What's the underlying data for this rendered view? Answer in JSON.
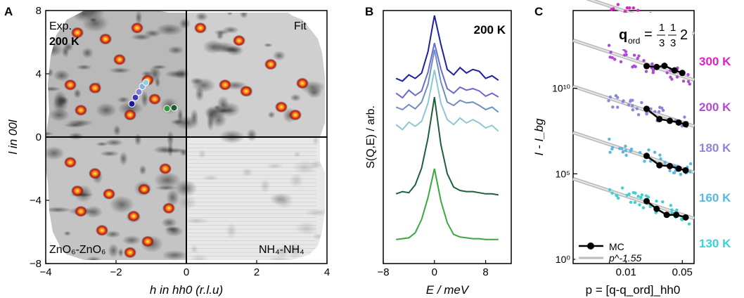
{
  "panels": {
    "a": {
      "letter": "A",
      "exp_label": "Exp.",
      "temp_label": "200 K",
      "fit_label": "Fit",
      "bottom_left_label": "ZnO₆-ZnO₆",
      "bottom_right_label": "NH₄-NH₄",
      "xlabel": "h in hh0 (r.l.u)",
      "ylabel": "l in 00l"
    },
    "b": {
      "letter": "B",
      "temp_label": "200 K",
      "xlabel": "E / meV",
      "ylabel": "S(Q,E) / arb."
    },
    "c": {
      "letter": "C",
      "q_label": "q",
      "q_sub": "ord",
      "q_value": "= 1/3 1/3 2",
      "xlabel": "p = [q-q_ord]_hh0",
      "ylabel": "I - I_bg",
      "legend": {
        "mc": "MC",
        "power": "p^-1.55"
      }
    }
  },
  "chart_data": [
    {
      "panel": "A",
      "type": "heatmap",
      "xlim": [
        -4,
        4
      ],
      "ylim": [
        -8,
        8
      ],
      "x_ticks": [
        "−4",
        "−2",
        "0",
        "2",
        "4"
      ],
      "y_ticks": [
        "8",
        "4",
        "0",
        "−4",
        "−8"
      ],
      "x_tick_values": [
        -4,
        -2,
        0,
        2,
        4
      ],
      "y_tick_values": [
        8,
        4,
        0,
        -4,
        -8
      ],
      "peaks": [
        {
          "h": -3.1,
          "l": 6.6
        },
        {
          "h": -2.3,
          "l": 6.2
        },
        {
          "h": -1.4,
          "l": 6.9
        },
        {
          "h": -1.9,
          "l": 4.9
        },
        {
          "h": -3.3,
          "l": 3.3
        },
        {
          "h": -2.6,
          "l": 3.1
        },
        {
          "h": -1.1,
          "l": 3.6
        },
        {
          "h": -0.9,
          "l": 2.4
        },
        {
          "h": -3.0,
          "l": 1.7
        },
        {
          "h": -1.6,
          "l": 1.4
        },
        {
          "h": 0.4,
          "l": 6.9
        },
        {
          "h": 1.5,
          "l": 6.1
        },
        {
          "h": 2.4,
          "l": 4.6
        },
        {
          "h": 3.3,
          "l": 3.4
        },
        {
          "h": 2.7,
          "l": 1.9
        },
        {
          "h": 1.1,
          "l": 3.3
        },
        {
          "h": 1.7,
          "l": 2.9
        },
        {
          "h": 3.1,
          "l": 1.4
        },
        {
          "h": -3.3,
          "l": -1.6
        },
        {
          "h": -2.6,
          "l": -2.3
        },
        {
          "h": -3.1,
          "l": -3.4
        },
        {
          "h": -2.2,
          "l": -3.6
        },
        {
          "h": -1.2,
          "l": -3.3
        },
        {
          "h": -3.0,
          "l": -4.7
        },
        {
          "h": -2.4,
          "l": -5.9
        },
        {
          "h": -1.5,
          "l": -5.0
        },
        {
          "h": -1.1,
          "l": -6.6
        },
        {
          "h": -1.6,
          "l": -7.3
        },
        {
          "h": -0.6,
          "l": -2.0
        },
        {
          "h": -0.5,
          "l": -4.5
        }
      ],
      "markers": [
        {
          "h": -1.55,
          "l": 2.1,
          "color": "#1a1a99"
        },
        {
          "h": -1.45,
          "l": 2.5,
          "color": "#3a3ab8"
        },
        {
          "h": -1.35,
          "l": 2.85,
          "color": "#7f7fd6"
        },
        {
          "h": -1.25,
          "l": 3.2,
          "color": "#8ab0d8"
        },
        {
          "h": -1.15,
          "l": 3.45,
          "color": "#8fd2df"
        },
        {
          "h": -0.55,
          "l": 1.8,
          "color": "#2f9a3a"
        },
        {
          "h": -0.35,
          "l": 1.85,
          "color": "#1d5b33"
        }
      ]
    },
    {
      "panel": "B",
      "type": "line",
      "xlim": [
        -8,
        12
      ],
      "x_ticks": [
        "−8",
        "0",
        "8"
      ],
      "x_tick_values": [
        -8,
        0,
        8
      ],
      "x": [
        -6,
        -5,
        -4,
        -3,
        -2,
        -1,
        0,
        1,
        2,
        3,
        4,
        5,
        6,
        7,
        8,
        9,
        10
      ],
      "series": [
        {
          "color": "#1f1fa3",
          "values": [
            0.3,
            0.27,
            0.34,
            0.3,
            0.36,
            0.6,
            1.0,
            0.68,
            0.4,
            0.34,
            0.42,
            0.36,
            0.4,
            0.38,
            0.3,
            0.33,
            0.28
          ]
        },
        {
          "color": "#6b6bcf",
          "values": [
            0.3,
            0.24,
            0.34,
            0.27,
            0.33,
            0.58,
            0.96,
            0.62,
            0.36,
            0.3,
            0.38,
            0.34,
            0.36,
            0.33,
            0.26,
            0.3,
            0.25
          ]
        },
        {
          "color": "#6e8fbf",
          "values": [
            0.28,
            0.25,
            0.31,
            0.26,
            0.34,
            0.55,
            0.96,
            0.58,
            0.34,
            0.3,
            0.36,
            0.33,
            0.34,
            0.3,
            0.25,
            0.28,
            0.22
          ]
        },
        {
          "color": "#8ec6d6",
          "values": [
            0.26,
            0.2,
            0.29,
            0.24,
            0.3,
            0.52,
            0.92,
            0.52,
            0.32,
            0.26,
            0.34,
            0.28,
            0.32,
            0.28,
            0.22,
            0.25,
            0.18
          ]
        },
        {
          "color": "#1f5e3a",
          "values": [
            0.12,
            0.14,
            0.13,
            0.2,
            0.35,
            0.62,
            0.98,
            0.56,
            0.3,
            0.18,
            0.15,
            0.14,
            0.14,
            0.13,
            0.12,
            0.12,
            0.11
          ]
        },
        {
          "color": "#3aa83f",
          "values": [
            0.06,
            0.07,
            0.08,
            0.14,
            0.3,
            0.56,
            0.9,
            0.52,
            0.26,
            0.12,
            0.09,
            0.08,
            0.07,
            0.07,
            0.06,
            0.06,
            0.06
          ]
        }
      ]
    },
    {
      "panel": "C",
      "type": "scatter",
      "x_scale": "log",
      "y_scale": "log",
      "x_ticks": [
        "0.01",
        "0.05"
      ],
      "x_tick_values": [
        0.01,
        0.05
      ],
      "y_ticks": [
        "10¹⁰",
        "10⁵",
        "10⁰"
      ],
      "y_exponents": [
        10,
        5,
        0
      ],
      "series": [
        {
          "name": "300 K",
          "color": "#e020c8",
          "offset": 4.0,
          "mc": [
            [
              0.018,
              1.55
            ],
            [
              0.026,
              1.45
            ],
            [
              0.032,
              1.4
            ],
            [
              0.04,
              1.42
            ],
            [
              0.05,
              1.38
            ]
          ]
        },
        {
          "name": "200 K",
          "color": "#b04ad6",
          "offset": 3.0,
          "mc": [
            [
              0.018,
              1.6
            ],
            [
              0.024,
              1.55
            ],
            [
              0.03,
              1.62
            ],
            [
              0.04,
              1.35
            ],
            [
              0.05,
              1.2
            ]
          ]
        },
        {
          "name": "180 K",
          "color": "#8a86dc",
          "offset": 2.0,
          "mc": [
            [
              0.018,
              1.8
            ],
            [
              0.026,
              1.2
            ],
            [
              0.035,
              1.1
            ],
            [
              0.045,
              1.0
            ],
            [
              0.055,
              0.9
            ]
          ]
        },
        {
          "name": "160 K",
          "color": "#58b8e0",
          "offset": 1.0,
          "mc": [
            [
              0.018,
              1.75
            ],
            [
              0.026,
              1.2
            ],
            [
              0.035,
              1.15
            ],
            [
              0.045,
              1.0
            ],
            [
              0.055,
              0.9
            ]
          ]
        },
        {
          "name": "130 K",
          "color": "#3ad2d2",
          "offset": 0.0,
          "mc": [
            [
              0.018,
              1.8
            ],
            [
              0.024,
              1.35
            ],
            [
              0.032,
              1.0
            ],
            [
              0.042,
              1.0
            ],
            [
              0.055,
              0.85
            ]
          ]
        }
      ],
      "power_law_exponent": -1.55
    }
  ]
}
